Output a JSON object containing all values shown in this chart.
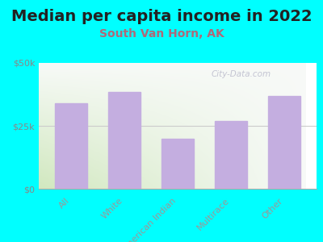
{
  "title": "Median per capita income in 2022",
  "subtitle": "South Van Horn, AK",
  "categories": [
    "All",
    "White",
    "American Indian",
    "Multirace",
    "Other"
  ],
  "values": [
    34000,
    38500,
    20000,
    27000,
    37000
  ],
  "bar_color": "#c4aee0",
  "background_color": "#00ffff",
  "plot_bg_color_topleft": "#d8e8c8",
  "plot_bg_color_topright": "#f8f8f8",
  "plot_bg_color_bottom": "#f0f5e0",
  "title_fontsize": 14,
  "subtitle_fontsize": 10,
  "subtitle_color": "#b06878",
  "title_color": "#222222",
  "tick_label_color": "#888888",
  "axis_label_color": "#999999",
  "ylim": [
    0,
    50000
  ],
  "yticks": [
    0,
    25000,
    50000
  ],
  "ytick_labels": [
    "$0",
    "$25k",
    "$50k"
  ],
  "watermark": "City-Data.com",
  "watermark_color": "#bbbbcc"
}
